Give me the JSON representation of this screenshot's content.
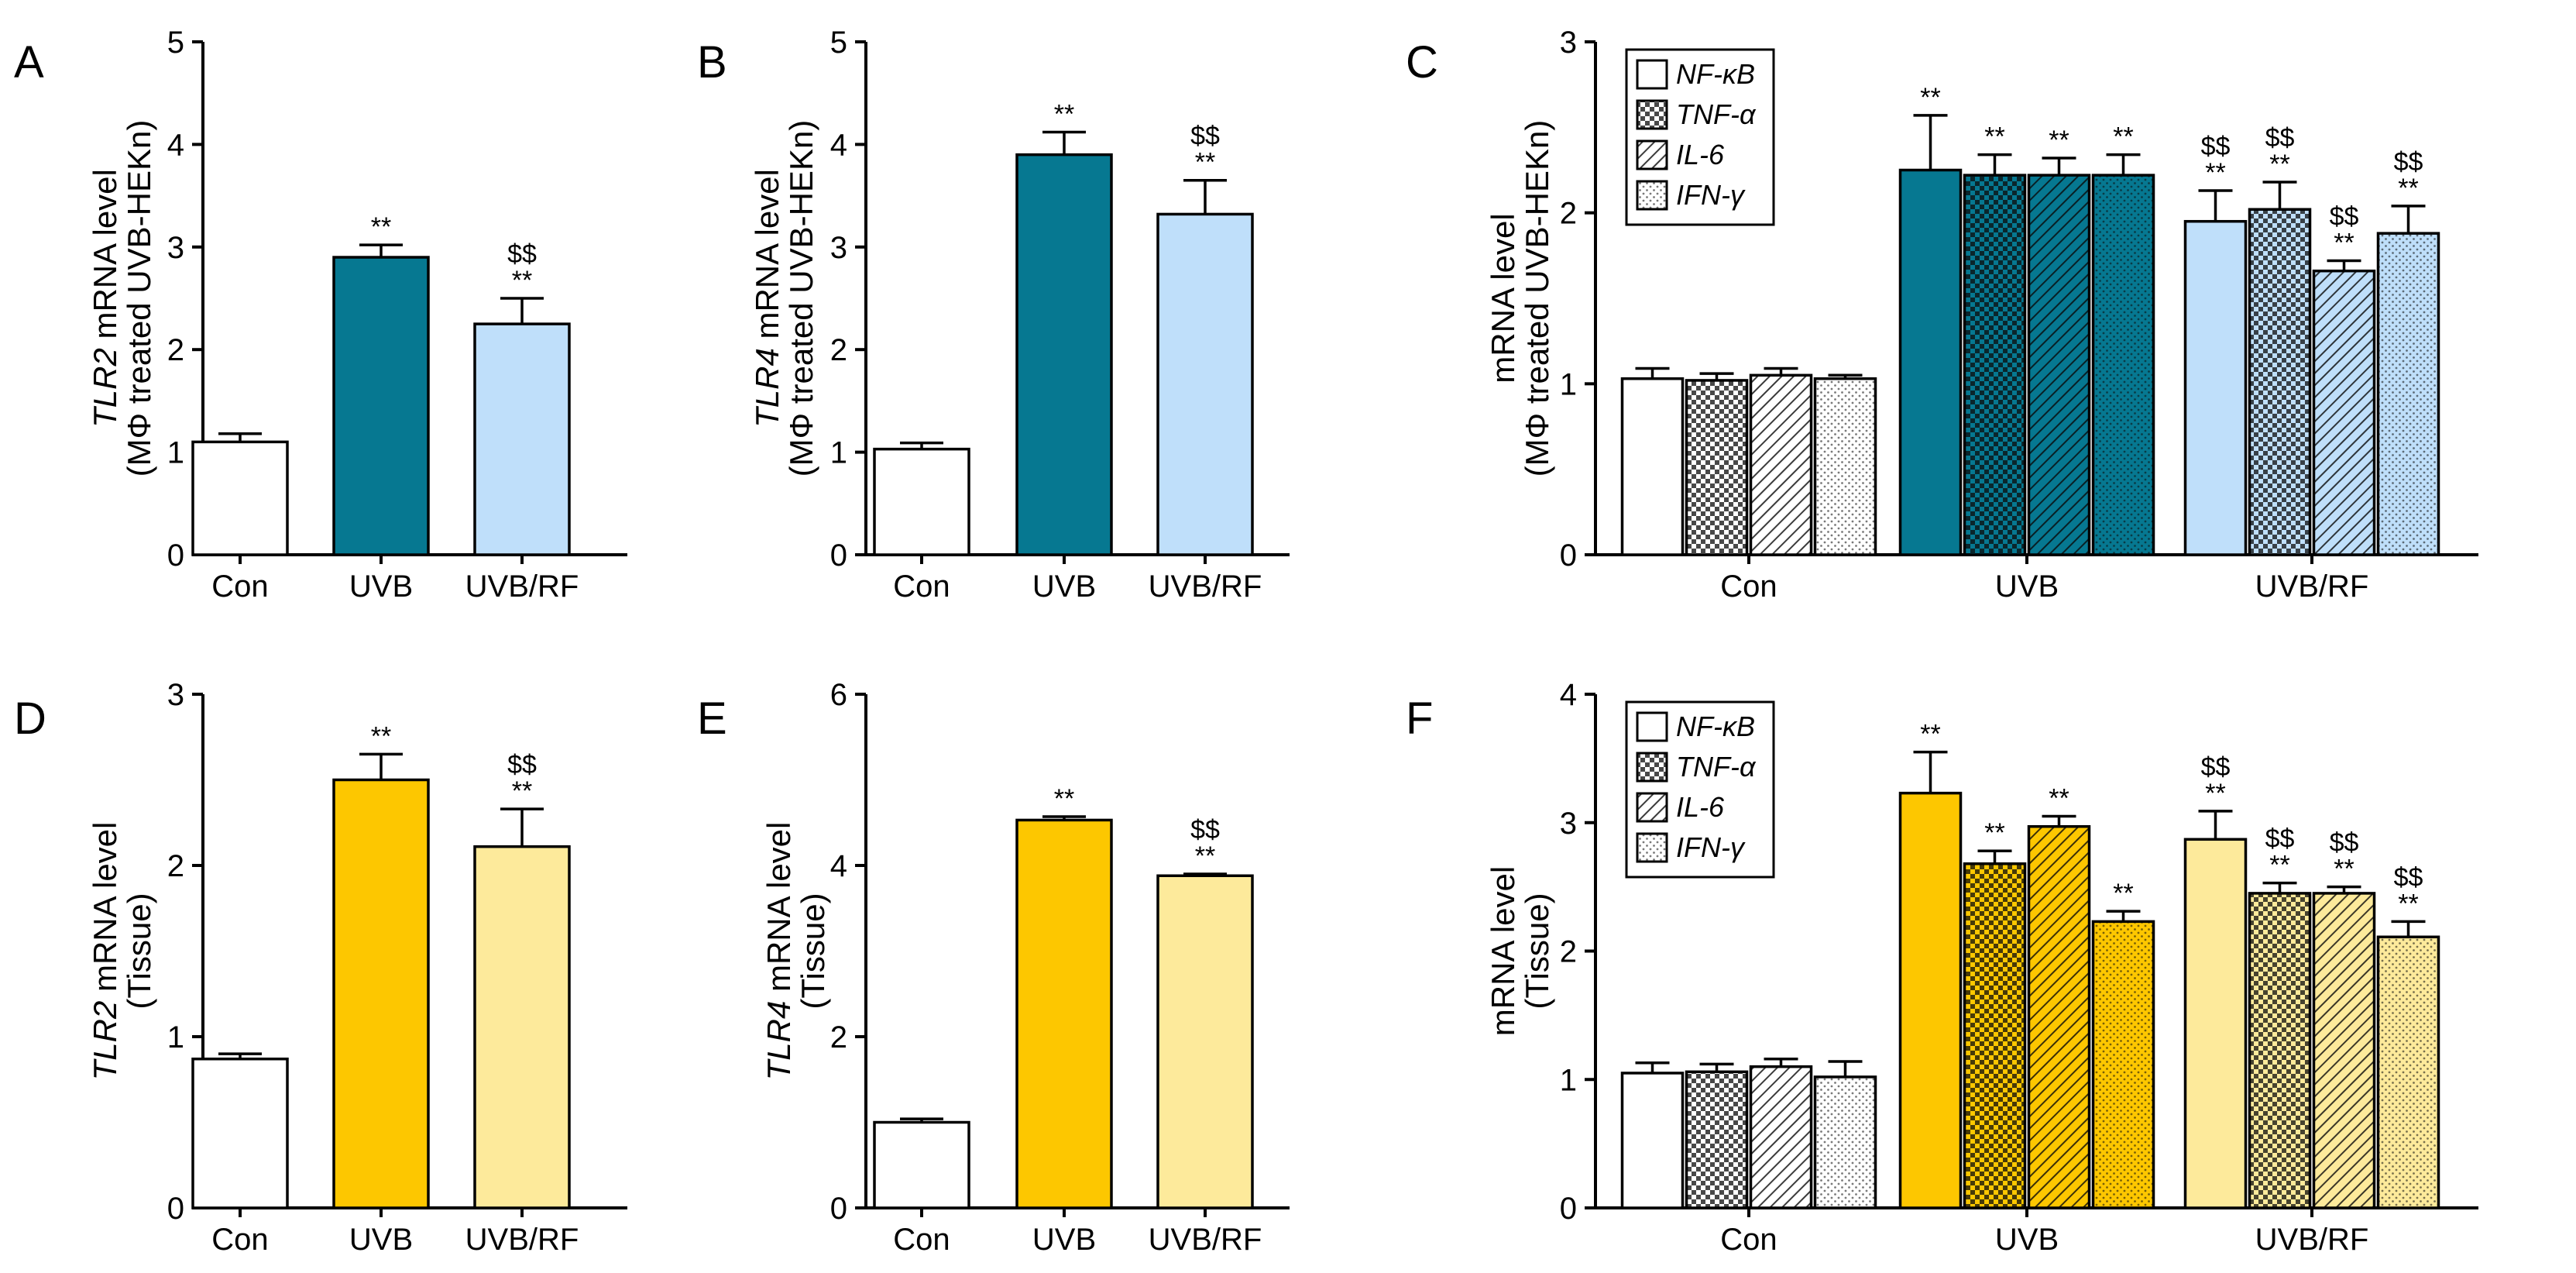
{
  "chart_data": [
    {
      "panel": "A",
      "type": "bar",
      "ylabel_gene": "TLR2",
      "ylabel_rest": " mRNA level",
      "ylabel_line2": "(MΦ treated UVB-HEKn)",
      "ylim": [
        0,
        5
      ],
      "yticks": [
        "0",
        "1",
        "2",
        "3",
        "4",
        "5"
      ],
      "categories": [
        "Con",
        "UVB",
        "UVB/RF"
      ],
      "values": [
        1.1,
        2.9,
        2.25
      ],
      "errors": [
        0.08,
        0.12,
        0.25
      ],
      "colors": [
        "#ffffff",
        "#067891",
        "#bfdffa"
      ],
      "annotations": [
        [],
        [
          "**"
        ],
        [
          "$$",
          "**"
        ]
      ]
    },
    {
      "panel": "B",
      "type": "bar",
      "ylabel_gene": "TLR4",
      "ylabel_rest": " mRNA level",
      "ylabel_line2": "(MΦ treated UVB-HEKn)",
      "ylim": [
        0,
        5
      ],
      "yticks": [
        "0",
        "1",
        "2",
        "3",
        "4",
        "5"
      ],
      "categories": [
        "Con",
        "UVB",
        "UVB/RF"
      ],
      "values": [
        1.03,
        3.9,
        3.32
      ],
      "errors": [
        0.06,
        0.22,
        0.33
      ],
      "colors": [
        "#ffffff",
        "#067891",
        "#bfdffa"
      ],
      "annotations": [
        [],
        [
          "**"
        ],
        [
          "$$",
          "**"
        ]
      ]
    },
    {
      "panel": "C",
      "type": "grouped-bar",
      "ylabel_line1": "mRNA level",
      "ylabel_line2": "(MΦ treated UVB-HEKn)",
      "ylim": [
        0,
        3
      ],
      "yticks": [
        "0",
        "1",
        "2",
        "3"
      ],
      "categories": [
        "Con",
        "UVB",
        "UVB/RF"
      ],
      "series": [
        {
          "name": "NF-κB",
          "pattern": "solid",
          "values": [
            1.03,
            2.25,
            1.95
          ],
          "errors": [
            0.06,
            0.32,
            0.18
          ],
          "annotations": [
            [],
            [
              "**"
            ],
            [
              "$$",
              "**"
            ]
          ]
        },
        {
          "name": "TNF-α",
          "pattern": "checker",
          "values": [
            1.02,
            2.22,
            2.02
          ],
          "errors": [
            0.04,
            0.12,
            0.16
          ],
          "annotations": [
            [],
            [
              "**"
            ],
            [
              "$$",
              "**"
            ]
          ]
        },
        {
          "name": "IL-6",
          "pattern": "diagonal",
          "values": [
            1.05,
            2.22,
            1.66
          ],
          "errors": [
            0.04,
            0.1,
            0.06
          ],
          "annotations": [
            [],
            [
              "**"
            ],
            [
              "$$",
              "**"
            ]
          ]
        },
        {
          "name": "IFN-γ",
          "pattern": "dots",
          "values": [
            1.03,
            2.22,
            1.88
          ],
          "errors": [
            0.02,
            0.12,
            0.16
          ],
          "annotations": [
            [],
            [
              "**"
            ],
            [
              "$$",
              "**"
            ]
          ]
        }
      ],
      "group_colors": [
        "#ffffff",
        "#067891",
        "#bfdffa"
      ]
    },
    {
      "panel": "D",
      "type": "bar",
      "ylabel_gene": "TLR2",
      "ylabel_rest": " mRNA level",
      "ylabel_line2": "(Tissue)",
      "ylim": [
        0,
        3
      ],
      "yticks": [
        "0",
        "1",
        "2",
        "3"
      ],
      "categories": [
        "Con",
        "UVB",
        "UVB/RF"
      ],
      "values": [
        0.87,
        2.5,
        2.11
      ],
      "errors": [
        0.03,
        0.15,
        0.22
      ],
      "colors": [
        "#ffffff",
        "#fdc700",
        "#fdea9b"
      ],
      "annotations": [
        [],
        [
          "**"
        ],
        [
          "$$",
          "**"
        ]
      ]
    },
    {
      "panel": "E",
      "type": "bar",
      "ylabel_gene": "TLR4",
      "ylabel_rest": " mRNA level",
      "ylabel_line2": "(Tissue)",
      "ylim": [
        0,
        6
      ],
      "yticks": [
        "0",
        "2",
        "4",
        "6"
      ],
      "categories": [
        "Con",
        "UVB",
        "UVB/RF"
      ],
      "values": [
        1.0,
        4.53,
        3.88
      ],
      "errors": [
        0.04,
        0.04,
        0.02
      ],
      "colors": [
        "#ffffff",
        "#fdc700",
        "#fdea9b"
      ],
      "annotations": [
        [],
        [
          "**"
        ],
        [
          "$$",
          "**"
        ]
      ]
    },
    {
      "panel": "F",
      "type": "grouped-bar",
      "ylabel_line1": "mRNA level",
      "ylabel_line2": "(Tissue)",
      "ylim": [
        0,
        4
      ],
      "yticks": [
        "0",
        "1",
        "2",
        "3",
        "4"
      ],
      "categories": [
        "Con",
        "UVB",
        "UVB/RF"
      ],
      "series": [
        {
          "name": "NF-κB",
          "pattern": "solid",
          "values": [
            1.05,
            3.23,
            2.87
          ],
          "errors": [
            0.08,
            0.32,
            0.22
          ],
          "annotations": [
            [],
            [
              "**"
            ],
            [
              "$$",
              "**"
            ]
          ]
        },
        {
          "name": "TNF-α",
          "pattern": "checker",
          "values": [
            1.06,
            2.68,
            2.45
          ],
          "errors": [
            0.06,
            0.1,
            0.08
          ],
          "annotations": [
            [],
            [
              "**"
            ],
            [
              "$$",
              "**"
            ]
          ]
        },
        {
          "name": "IL-6",
          "pattern": "diagonal",
          "values": [
            1.1,
            2.97,
            2.45
          ],
          "errors": [
            0.06,
            0.08,
            0.05
          ],
          "annotations": [
            [],
            [
              "**"
            ],
            [
              "$$",
              "**"
            ]
          ]
        },
        {
          "name": "IFN-γ",
          "pattern": "dots",
          "values": [
            1.02,
            2.23,
            2.11
          ],
          "errors": [
            0.12,
            0.08,
            0.12
          ],
          "annotations": [
            [],
            [
              "**"
            ],
            [
              "$$",
              "**"
            ]
          ]
        }
      ],
      "group_colors": [
        "#ffffff",
        "#fdc700",
        "#fdea9b"
      ]
    }
  ]
}
